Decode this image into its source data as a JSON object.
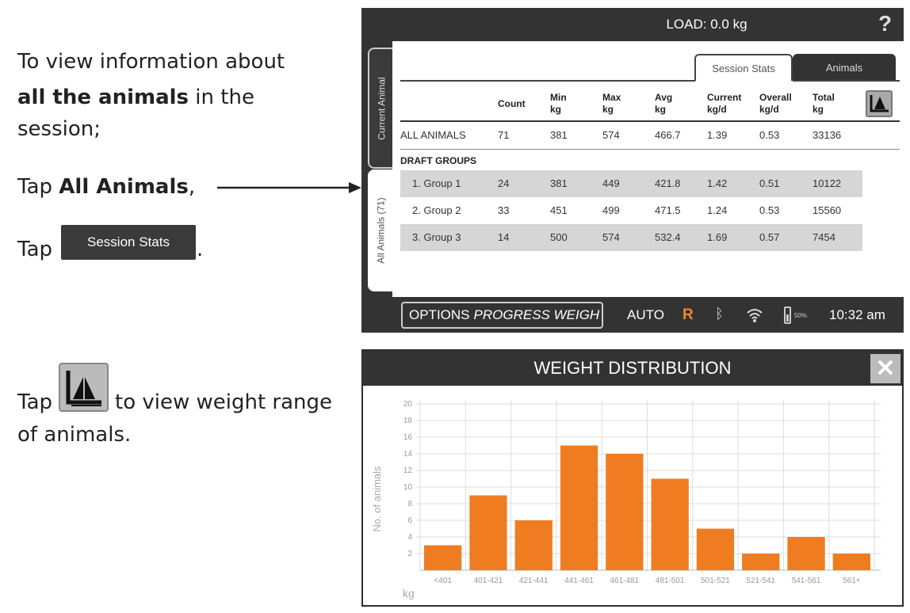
{
  "instructions": {
    "line1": "To view information about",
    "line2_bold": "all the animals",
    "line2_rest": " in the",
    "line3": "session;",
    "tap_all_prefix": "Tap ",
    "tap_all_bold": "All Animals",
    "tap_all_suffix": ",",
    "tap_session_prefix": "Tap",
    "tap_session_button": "Session Stats",
    "tap_session_suffix": ".",
    "tap_chart_prefix": "Tap",
    "tap_chart_rest": "to view weight range",
    "tap_chart_line2": "of animals."
  },
  "device": {
    "load": "LOAD: 0.0 kg",
    "help": "?",
    "side_tabs": [
      "Current Animal",
      "All Animals (71)"
    ],
    "tabs": [
      "Session Stats",
      "Animals"
    ],
    "active_tab": "Session Stats",
    "columns": [
      [
        "Count",
        ""
      ],
      [
        "Min",
        "kg"
      ],
      [
        "Max",
        "kg"
      ],
      [
        "Avg",
        "kg"
      ],
      [
        "Current",
        "kg/d"
      ],
      [
        "Overall",
        "kg/d"
      ],
      [
        "Total",
        "kg"
      ]
    ],
    "all_row": [
      "ALL ANIMALS",
      "71",
      "381",
      "574",
      "466.7",
      "1.39",
      "0.53",
      "33136"
    ],
    "draft_label": "DRAFT GROUPS",
    "groups": [
      [
        "1. Group 1",
        "24",
        "381",
        "449",
        "421.8",
        "1.42",
        "0.51",
        "10122"
      ],
      [
        "2. Group 2",
        "33",
        "451",
        "499",
        "471.5",
        "1.24",
        "0.53",
        "15560"
      ],
      [
        "3. Group 3",
        "14",
        "500",
        "574",
        "532.4",
        "1.69",
        "0.57",
        "7454"
      ]
    ],
    "options": "OPTIONS",
    "mode": "PROGRESS WEIGH",
    "auto": "AUTO",
    "r": "R",
    "battery": "50%",
    "time": "10:32 am",
    "accent": "#f08a24"
  },
  "chart_data": {
    "type": "bar",
    "title": "WEIGHT DISTRIBUTION",
    "xlabel": "kg",
    "ylabel": "No. of animals",
    "categories": [
      "<401",
      "401-421",
      "421-441",
      "441-461",
      "461-481",
      "481-501",
      "501-521",
      "521-541",
      "541-561",
      "561+"
    ],
    "values": [
      3,
      9,
      6,
      15,
      14,
      11,
      5,
      2,
      4,
      2
    ],
    "yticks": [
      2,
      4,
      6,
      8,
      10,
      12,
      14,
      16,
      18,
      20
    ],
    "ylim": [
      0,
      20
    ],
    "grid": true,
    "color": "#f07c22"
  }
}
